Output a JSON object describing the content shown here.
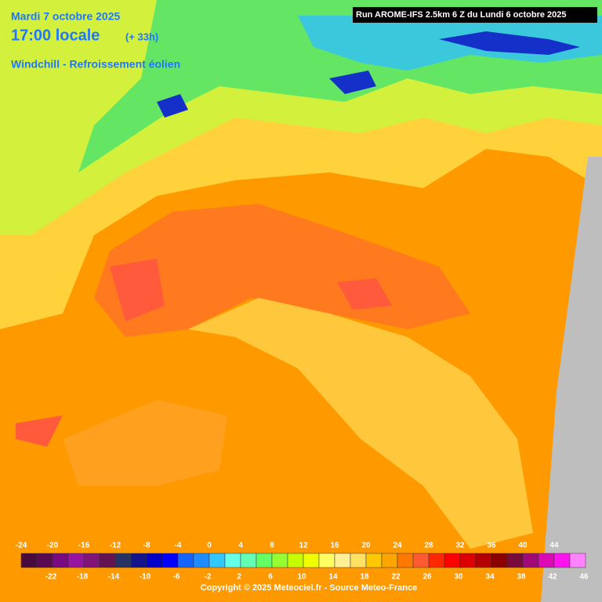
{
  "header": {
    "date": "Mardi 7 octobre 2025",
    "time": "17:00 locale",
    "offset": "(+ 33h)",
    "parameter": "Windchill - Refroissement éolien",
    "run": "Run AROME-IFS 2.5km 6 Z du Lundi 6 octobre 2025"
  },
  "legend": {
    "ticks": [
      -24,
      -22,
      -20,
      -18,
      -16,
      -14,
      -12,
      -10,
      -8,
      -6,
      -4,
      -2,
      0,
      2,
      4,
      6,
      8,
      10,
      12,
      14,
      16,
      18,
      20,
      22,
      24,
      26,
      28,
      30,
      32,
      34,
      36,
      38,
      40,
      42,
      44,
      46
    ],
    "colors": [
      "#4b0a3c",
      "#5a0a50",
      "#780a82",
      "#9614a0",
      "#801478",
      "#641450",
      "#283264",
      "#14148c",
      "#0000c8",
      "#0000ff",
      "#1464ff",
      "#1e8cff",
      "#32c8ff",
      "#64ffe6",
      "#64ffb4",
      "#64ff64",
      "#96ff32",
      "#c8ff00",
      "#f0ff00",
      "#ffff64",
      "#fff096",
      "#ffe164",
      "#ffc800",
      "#ffa500",
      "#ff7800",
      "#ff5a32",
      "#ff2800",
      "#ff0000",
      "#dc0000",
      "#b40000",
      "#8c0000",
      "#780a3c",
      "#a00a78",
      "#dc0ab4",
      "#ff14f0",
      "#ff82ff"
    ]
  },
  "footer": "Copyright © 2025 Meteociel.fr - Source Meteo-France"
}
